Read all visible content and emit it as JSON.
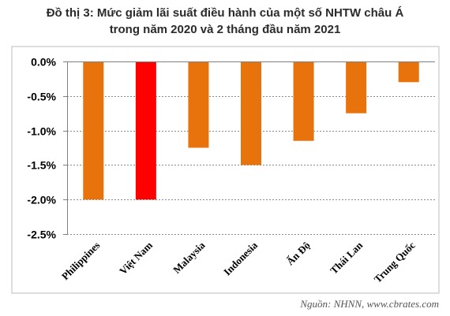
{
  "title_lines": [
    "Đồ thị 3: Mức giảm lãi suất điều hành của một số NHTW châu Á",
    "trong năm 2020 và 2 tháng đầu năm 2021"
  ],
  "source": "Nguồn: NHNN, www.cbrates.com",
  "colors": {
    "default_bar": "#E8730C",
    "highlight_bar": "#FF0000",
    "grid": "#8c8c8c",
    "axis": "#808080",
    "text": "#000000"
  },
  "chart_data": {
    "type": "bar",
    "title": "Đồ thị 3: Mức giảm lãi suất điều hành của một số NHTW châu Á trong năm 2020 và 2 tháng đầu năm 2021",
    "categories": [
      "Philippines",
      "Việt Nam",
      "Malaysia",
      "Indonesia",
      "Ấn Độ",
      "Thái Lan",
      "Trung Quốc"
    ],
    "values": [
      -2.0,
      -2.0,
      -1.25,
      -1.5,
      -1.15,
      -0.75,
      -0.3
    ],
    "highlight_index": 1,
    "ylim": [
      -2.5,
      0
    ],
    "yticks": [
      0,
      -0.5,
      -1.0,
      -1.5,
      -2.0,
      -2.5
    ],
    "ytick_labels": [
      "0.0%",
      "-0.5%",
      "-1.0%",
      "-1.5%",
      "-2.0%",
      "-2.5%"
    ],
    "xlabel": "",
    "ylabel": "",
    "grid": "horizontal dashed",
    "legend": "none"
  }
}
